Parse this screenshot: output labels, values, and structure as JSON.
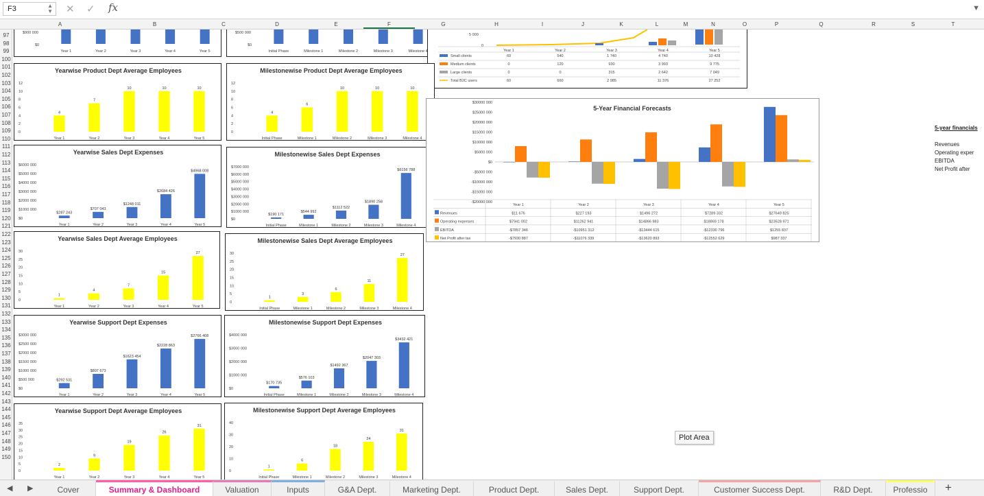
{
  "formula_bar": {
    "cell_ref": "F3",
    "fx": "fx"
  },
  "columns": [
    "A",
    "B",
    "C",
    "D",
    "E",
    "F",
    "G",
    "H",
    "I",
    "J",
    "K",
    "L",
    "M",
    "N",
    "O",
    "P",
    "Q",
    "R",
    "S",
    "T"
  ],
  "rows": [
    "97",
    "98",
    "99",
    "100",
    "101",
    "102",
    "103",
    "104",
    "105",
    "106",
    "107",
    "108",
    "109",
    "110",
    "111",
    "112",
    "113",
    "114",
    "115",
    "116",
    "117",
    "118",
    "119",
    "120",
    "121",
    "122",
    "123",
    "124",
    "125",
    "126",
    "127",
    "128",
    "129",
    "130",
    "131",
    "132",
    "133",
    "134",
    "135",
    "136",
    "137",
    "138",
    "139",
    "140",
    "141",
    "142",
    "143",
    "144",
    "145",
    "146",
    "147",
    "148",
    "149",
    "150"
  ],
  "colors": {
    "blue": "#4472c4",
    "yellow": "#ffff00",
    "orange": "#ff7f0e",
    "gray": "#a5a5a5",
    "gold": "#ffc000",
    "active_tab": "#e0218a"
  },
  "charts": {
    "top_left": {
      "ticks": [
        "$900 000",
        "$0"
      ],
      "categories": [
        "Year 1",
        "Year 2",
        "Year 3",
        "Year 4",
        "Year 5"
      ]
    },
    "top_mid": {
      "ticks": [
        "$500 000",
        "$0"
      ],
      "categories": [
        "Initial Phase",
        "Milestone 1",
        "Milestone 2",
        "Milestone 3",
        "Milestone 4"
      ]
    },
    "top_clients": {
      "ticks": [
        "5 000",
        "0"
      ],
      "years": [
        "Year 1",
        "Year 2",
        "Year 3",
        "Year 4",
        "Year 5"
      ],
      "rows": [
        {
          "name": "Small clients",
          "values": [
            "60",
            "540",
            "1 740",
            "4 740",
            "10 428"
          ]
        },
        {
          "name": "Medium clients",
          "values": [
            "0",
            "120",
            "930",
            "3 993",
            "9 775"
          ]
        },
        {
          "name": "Large clients",
          "values": [
            "0",
            "0",
            "315",
            "2 642",
            "7 049"
          ]
        },
        {
          "name": "Total B2C users",
          "values": [
            "60",
            "660",
            "2 985",
            "11 376",
            "27 252"
          ]
        }
      ]
    },
    "product_year": {
      "title": "Yearwise Product Dept  Average Employees",
      "ticks": [
        "12",
        "10",
        "8",
        "6",
        "4",
        "2",
        "0"
      ],
      "categories": [
        "Year 1",
        "Year 2",
        "Year 3",
        "Year 4",
        "Year 5"
      ],
      "values": [
        4,
        7,
        10,
        10,
        10
      ],
      "labels": [
        "4",
        "7",
        "10",
        "10",
        "10"
      ],
      "ymax": 12
    },
    "product_mile": {
      "title": "Milestonewise Product Dept Average Employees",
      "ticks": [
        "12",
        "10",
        "8",
        "6",
        "4",
        "2",
        "0"
      ],
      "categories": [
        "Initial Phase",
        "Milestone 1",
        "Milestone 2",
        "Milestone 3",
        "Milestone 4"
      ],
      "values": [
        4,
        6,
        10,
        10,
        10
      ],
      "labels": [
        "4",
        "6",
        "10",
        "10",
        "10"
      ],
      "ymax": 12
    },
    "sales_exp_year": {
      "title": "Yearwise Sales Dept Expenses",
      "ticks": [
        "$6000 000",
        "$5000 000",
        "$4000 000",
        "$3000 000",
        "$2000 000",
        "$1000 000",
        "$0"
      ],
      "categories": [
        "Year 1",
        "Year 2",
        "Year 3",
        "Year 4",
        "Year 5"
      ],
      "values": [
        287243,
        707043,
        1248011,
        2684426,
        4968008
      ],
      "labels": [
        "$287 243",
        "$707 043",
        "$1248 011",
        "$2684 426",
        "$4968 008"
      ],
      "ymax": 6000000
    },
    "sales_exp_mile": {
      "title": "Milestonewise Sales Dept Expenses",
      "ticks": [
        "$7000 000",
        "$6000 000",
        "$5000 000",
        "$4000 000",
        "$3000 000",
        "$2000 000",
        "$1000 000",
        "$0"
      ],
      "categories": [
        "Initial Phase",
        "Milestone 1",
        "Milestone 2",
        "Milestone 3",
        "Milestone 4"
      ],
      "values": [
        190171,
        544992,
        1112522,
        1890258,
        6156788
      ],
      "labels": [
        "$190 171",
        "$544 992",
        "$1112 522",
        "$1890 258",
        "$6156 788"
      ],
      "ymax": 7000000
    },
    "sales_emp_year": {
      "title": "Yearwise Sales Dept  Average Employees",
      "ticks": [
        "30",
        "25",
        "20",
        "15",
        "10",
        "5",
        "0"
      ],
      "categories": [
        "Year 1",
        "Year 2",
        "Year 3",
        "Year 4",
        "Year 5"
      ],
      "values": [
        1,
        4,
        7,
        15,
        27
      ],
      "labels": [
        "1",
        "4",
        "7",
        "15",
        "27"
      ],
      "ymax": 30
    },
    "sales_emp_mile": {
      "title": "Milestonewise Sales Dept Average Employees",
      "ticks": [
        "30",
        "25",
        "20",
        "15",
        "10",
        "5",
        "0"
      ],
      "categories": [
        "Initial Phase",
        "Milestone 1",
        "Milestone 2",
        "Milestone 3",
        "Milestone 4"
      ],
      "values": [
        1,
        3,
        6,
        11,
        27
      ],
      "labels": [
        "1",
        "3",
        "6",
        "11",
        "27"
      ],
      "ymax": 30
    },
    "support_exp_year": {
      "title": "Yearwise Support Dept Expenses",
      "ticks": [
        "$3000 000",
        "$2500 000",
        "$2000 000",
        "$1500 000",
        "$1000 000",
        "$500 000",
        "$0"
      ],
      "categories": [
        "Year 1",
        "Year 2",
        "Year 3",
        "Year 4",
        "Year 5"
      ],
      "values": [
        292531,
        807673,
        1623454,
        2228863,
        2766408
      ],
      "labels": [
        "$292 531",
        "$807 673",
        "$1623 454",
        "$2228 863",
        "$2766 408"
      ],
      "ymax": 3000000
    },
    "support_exp_mile": {
      "title": "Milestonewise Support Dept Expenses",
      "ticks": [
        "$4000 000",
        "$3000 000",
        "$2000 000",
        "$1000 000",
        "$0"
      ],
      "categories": [
        "Initial Phase",
        "Milestone 1",
        "Milestone 2",
        "Milestone 3",
        "Milestone 4"
      ],
      "values": [
        170735,
        576103,
        1492367,
        2047303,
        3432421
      ],
      "labels": [
        "$170 735",
        "$576 103",
        "$1492 367",
        "$2047 303",
        "$3432 421"
      ],
      "ymax": 4000000
    },
    "support_emp_year": {
      "title": "Yearwise Support Dept  Average Employees",
      "ticks": [
        "35",
        "30",
        "25",
        "20",
        "15",
        "10",
        "5",
        "0"
      ],
      "categories": [
        "Year 1",
        "Year 2",
        "Year 3",
        "Year 4",
        "Year 5"
      ],
      "values": [
        2,
        9,
        19,
        26,
        31
      ],
      "labels": [
        "2",
        "9",
        "19",
        "26",
        "31"
      ],
      "ymax": 35
    },
    "support_emp_mile": {
      "title": "Milestonewise Support Dept Average Employees",
      "ticks": [
        "40",
        "30",
        "20",
        "10",
        "0"
      ],
      "categories": [
        "Initial Phase",
        "Milestone 1",
        "Milestone 2",
        "Milestone 3",
        "Milestone 4"
      ],
      "values": [
        1,
        6,
        18,
        24,
        31
      ],
      "labels": [
        "1",
        "6",
        "18",
        "24",
        "31"
      ],
      "ymax": 40
    },
    "financial": {
      "title": "5-Year Financial Forecasts",
      "ticks": [
        "$30000 000",
        "$25000 000",
        "$20000 000",
        "$15000 000",
        "$10000 000",
        "$5000 000",
        "$0",
        "-$5000 000",
        "-$10000 000",
        "-$15000 000",
        "-$20000 000"
      ],
      "years": [
        "Year 1",
        "Year 2",
        "Year 3",
        "Year 4",
        "Year 5"
      ],
      "series": [
        {
          "name": "Revenues",
          "values": [
            11676,
            227193,
            1496272,
            7289332,
            27649825
          ],
          "labels": [
            "$11 676",
            "$227 193",
            "$1496 272",
            "$7289 332",
            "$27649 825"
          ]
        },
        {
          "name": "Operating expenses",
          "values": [
            7941002,
            11262941,
            14866983,
            18869178,
            23528971
          ],
          "labels": [
            "$7941 002",
            "$11262 941",
            "$14866 983",
            "$18869 178",
            "$23528 971"
          ]
        },
        {
          "name": "EBITDA",
          "values": [
            -7857346,
            -10951312,
            -13444615,
            -12330796,
            1255837
          ],
          "labels": [
            "-$7857 346",
            "-$10951 312",
            "-$13444 615",
            "-$12330 796",
            "$1255 837"
          ]
        },
        {
          "name": "Net Profit after tax",
          "values": [
            -7930887,
            -11076339,
            -13620893,
            -12552629,
            987337
          ],
          "labels": [
            "-$7930 887",
            "-$11076 339",
            "-$13620 893",
            "-$12552 629",
            "$987 337"
          ]
        }
      ]
    }
  },
  "side_notes": {
    "heading": "5-year financials",
    "items": [
      "Revenues",
      "Operating exper",
      "EBITDA",
      "Net Profit after"
    ]
  },
  "tooltip": "Plot Area",
  "tabs": [
    {
      "label": "Cover"
    },
    {
      "label": "Summary & Dashboard"
    },
    {
      "label": "Valuation"
    },
    {
      "label": "Inputs"
    },
    {
      "label": "G&A Dept."
    },
    {
      "label": "Marketing Dept."
    },
    {
      "label": "Product Dept."
    },
    {
      "label": "Sales Dept."
    },
    {
      "label": "Support Dept."
    },
    {
      "label": "Customer Success Dept."
    },
    {
      "label": "R&D Dept."
    },
    {
      "label": "Professio"
    }
  ],
  "add_tab": "+",
  "nav": {
    "prev": "◀",
    "next": "▶"
  }
}
